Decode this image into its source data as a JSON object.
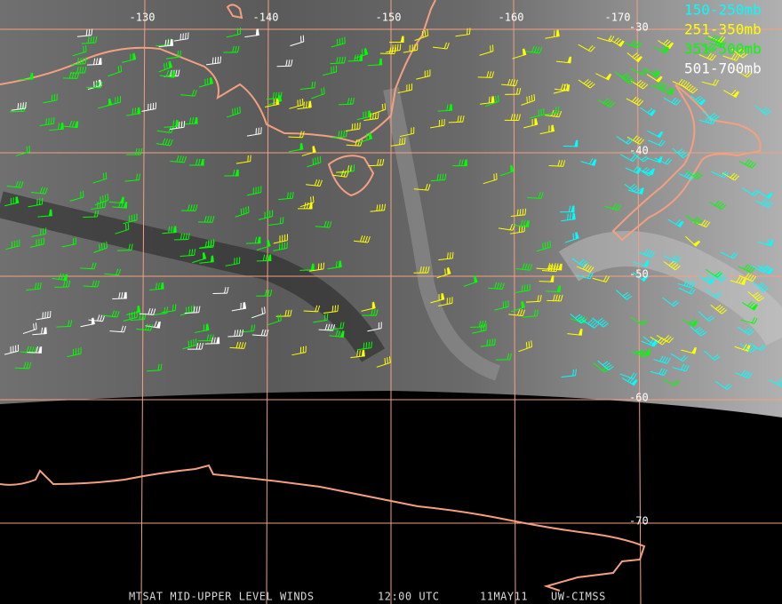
{
  "map": {
    "longitude_labels": [
      "-130",
      "-140",
      "-150",
      "-160",
      "-170"
    ],
    "latitude_labels": [
      "-30",
      "-40",
      "-50",
      "-60",
      "-70"
    ],
    "legend": [
      {
        "label": "150-250mb",
        "color": "#00ffff"
      },
      {
        "label": "251-350mb",
        "color": "#ffff00"
      },
      {
        "label": "351-500mb",
        "color": "#00ff00"
      },
      {
        "label": "501-700mb",
        "color": "#ffffff"
      }
    ],
    "footer": {
      "product": "MTSAT MID-UPPER LEVEL WINDS",
      "time": "12:00 UTC",
      "date": "11MAY11",
      "source": "UW-CIMSS"
    }
  }
}
